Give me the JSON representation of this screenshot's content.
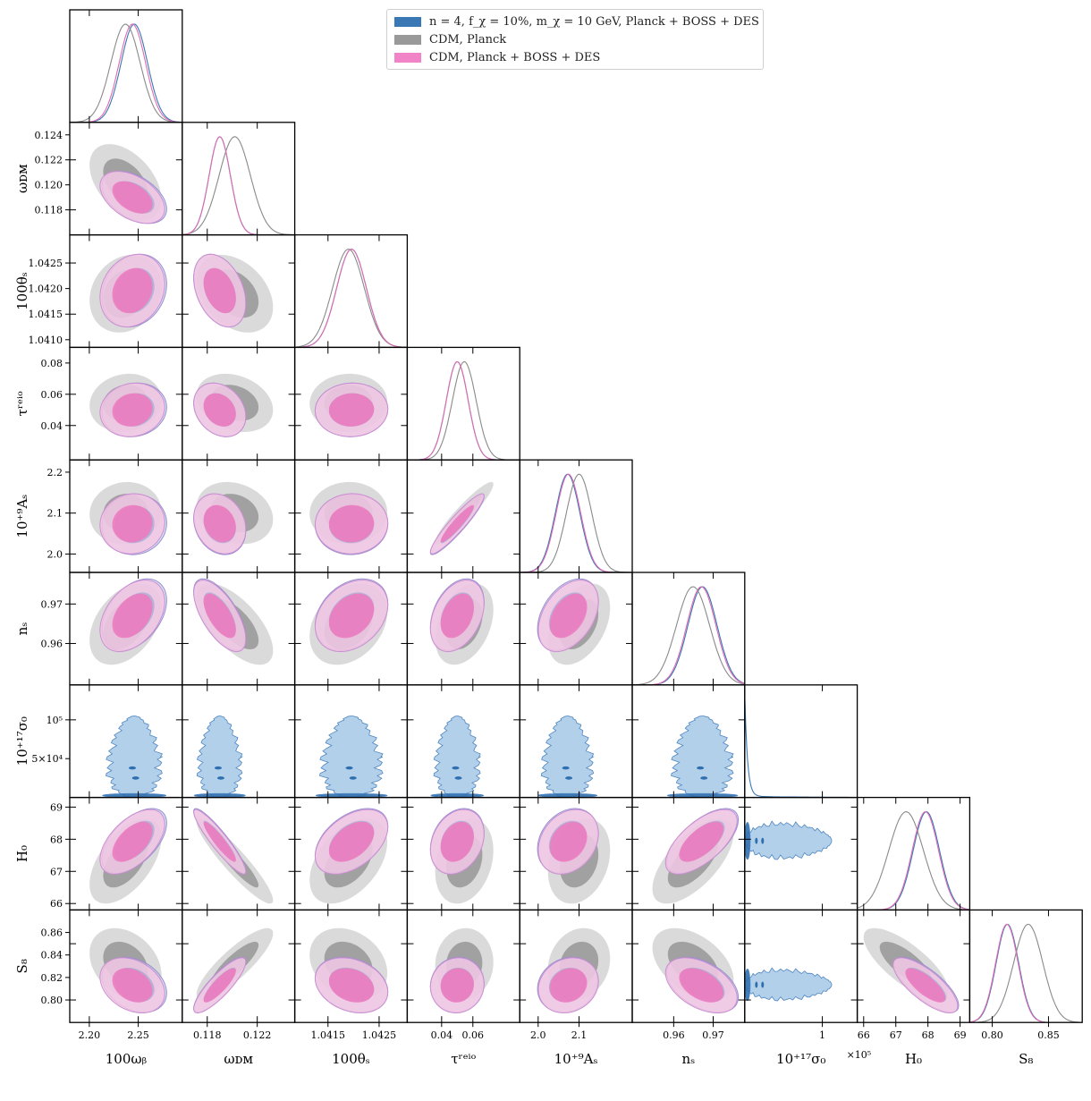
{
  "chart_data": {
    "type": "corner",
    "title": "",
    "parameters": [
      {
        "label": "100ω_b",
        "ticks": [
          2.2,
          2.25
        ],
        "range": [
          2.18,
          2.295
        ]
      },
      {
        "label": "ω_DM",
        "ticks": [
          0.118,
          0.122
        ],
        "range": [
          0.116,
          0.125
        ]
      },
      {
        "label": "100θ_s",
        "ticks": [
          1.0415,
          1.0425
        ],
        "range": [
          1.04085,
          1.04305
        ]
      },
      {
        "label": "τ_reio",
        "ticks": [
          0.04,
          0.06
        ],
        "range": [
          0.018,
          0.09
        ]
      },
      {
        "label": "10^{+9} A_s",
        "ticks": [
          2.0,
          2.1
        ],
        "range": [
          1.955,
          2.23
        ]
      },
      {
        "label": "n_s",
        "ticks": [
          0.96,
          0.97
        ],
        "range": [
          0.9495,
          0.978
        ]
      },
      {
        "label": "10^{+17} σ_0",
        "ticks": [
          1
        ],
        "range": [
          0,
          1.45
        ]
      },
      {
        "label": "H_0",
        "ticks": [
          66,
          67,
          68,
          69
        ],
        "range": [
          65.8,
          69.3
        ]
      },
      {
        "label": "S_8",
        "ticks": [
          0.8,
          0.85
        ],
        "range": [
          0.78,
          0.88
        ]
      }
    ],
    "x_axis_labels": [
      "100ω_b",
      "ω_DM",
      "100θ_s",
      "τ_reio",
      "10^{+9}A_s",
      "n_s",
      "10^{+17}σ_0",
      "H_0",
      "S_8"
    ],
    "y_axis_labels": [
      "ω_DM",
      "100θ_s",
      "τ_reio",
      "10^{+9}A_s",
      "n_s",
      "10^{+17}σ_0",
      "H_0",
      "S_8"
    ],
    "x_tick_labels": [
      [
        "2.20",
        "2.25"
      ],
      [
        "0.118",
        "0.122"
      ],
      [
        "1.0415",
        "1.0425"
      ],
      [
        "0.04",
        "0.06"
      ],
      [
        "2.0",
        "2.1"
      ],
      [
        "0.96",
        "0.97"
      ],
      [
        "1"
      ],
      [
        "66",
        "67",
        "68",
        "69"
      ],
      [
        "0.80",
        "0.85"
      ]
    ],
    "y_tick_labels": [
      [
        "0.118",
        "0.120",
        "0.122",
        "0.124"
      ],
      [
        "1.0410",
        "1.0415",
        "1.0420",
        "1.0425"
      ],
      [
        "0.04",
        "0.06",
        "0.08"
      ],
      [
        "2.0",
        "2.1",
        "2.2"
      ],
      [
        "0.96",
        "0.97"
      ],
      [
        "5×10^4",
        "10^5"
      ],
      [
        "66",
        "67",
        "68",
        "69"
      ],
      [
        "0.80",
        "0.82",
        "0.84",
        "0.86"
      ]
    ],
    "sigma0_exponent_label": "×10^5",
    "legend_position": "top-center",
    "series": [
      {
        "name": "n = 4, f_χ = 10%, m_χ = 10 GeV, Planck + BOSS + DES",
        "color": "#3a78b5",
        "mean": [
          2.246,
          0.119,
          1.04196,
          0.05,
          2.072,
          0.9673,
          0.12,
          67.95,
          0.8135
        ],
        "sigma": [
          0.0135,
          0.00085,
          0.00029,
          0.007,
          0.03,
          0.0037,
          0.4,
          0.41,
          0.01
        ]
      },
      {
        "name": "CDM, Planck",
        "color": "#8e8e8e",
        "mean": [
          2.237,
          0.1202,
          1.0419,
          0.0545,
          2.1,
          0.9649,
          0,
          67.32,
          0.832
        ],
        "sigma": [
          0.015,
          0.00125,
          0.00031,
          0.0076,
          0.031,
          0.0042,
          0,
          0.54,
          0.013
        ]
      },
      {
        "name": "CDM, Planck + BOSS + DES",
        "color": "#f07ec0",
        "mean": [
          2.244,
          0.119,
          1.04196,
          0.05,
          2.074,
          0.967,
          0,
          67.92,
          0.813
        ],
        "sigma": [
          0.0135,
          0.00085,
          0.00029,
          0.007,
          0.03,
          0.0037,
          0,
          0.41,
          0.01
        ]
      }
    ],
    "correlations": {
      "1,0": -0.45,
      "2,0": 0.18,
      "2,1": -0.35,
      "3,0": 0.1,
      "3,1": -0.25,
      "3,2": 0.03,
      "4,0": 0.05,
      "4,1": -0.2,
      "4,2": 0.02,
      "4,3": 0.93,
      "5,0": 0.4,
      "5,1": -0.65,
      "5,2": 0.3,
      "5,3": 0.35,
      "5,4": 0.4,
      "7,0": 0.55,
      "7,1": -0.92,
      "7,2": 0.45,
      "7,3": 0.25,
      "7,4": 0.25,
      "7,5": 0.65,
      "8,0": -0.3,
      "8,1": 0.85,
      "8,2": -0.25,
      "8,3": 0.05,
      "8,4": 0.15,
      "8,5": -0.45,
      "8,7": -0.75
    }
  },
  "legend": {
    "items": [
      {
        "label": "n = 4, f_χ = 10%, m_χ = 10 GeV, Planck + BOSS + DES",
        "color": "#3a78b5"
      },
      {
        "label": "CDM, Planck",
        "color": "#999999"
      },
      {
        "label": "CDM, Planck + BOSS + DES",
        "color": "#f184c6"
      }
    ]
  }
}
